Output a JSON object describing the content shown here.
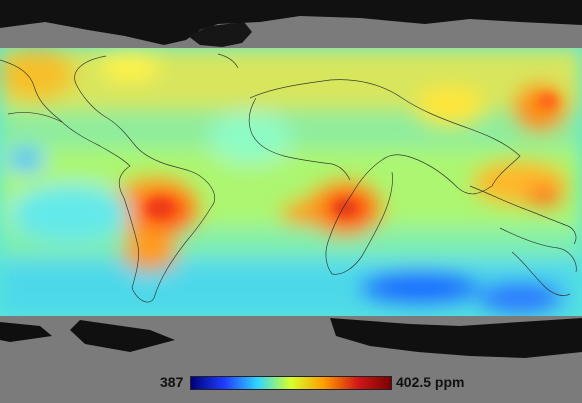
{
  "map": {
    "background_color": "#7b7b7b",
    "land_color": "#8c8c8c",
    "polar_land_color": "#0b0b0b",
    "coastline_color": "#2b2b2b"
  },
  "legend": {
    "min_label": "387",
    "max_label": "402.5 ppm",
    "gradient_colors": [
      "#00007a",
      "#1f3cff",
      "#2fd6ff",
      "#d7ff2a",
      "#ff9b00",
      "#d11818",
      "#7a0000"
    ]
  }
}
